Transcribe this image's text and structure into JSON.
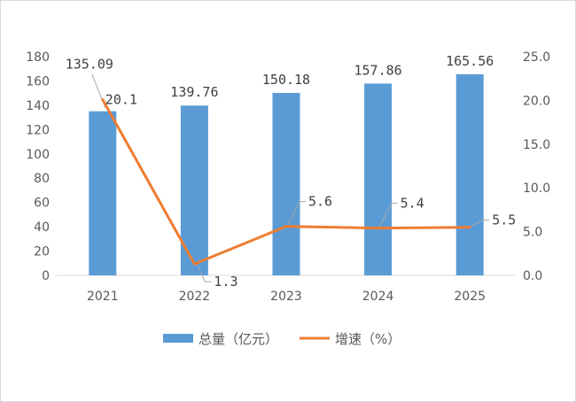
{
  "chart_data": {
    "type": "bar+line",
    "categories": [
      "2021",
      "2022",
      "2023",
      "2024",
      "2025"
    ],
    "series": [
      {
        "name": "总量（亿元）",
        "type": "bar",
        "axis": "left",
        "values": [
          135.09,
          139.76,
          150.18,
          157.86,
          165.56
        ],
        "labels": [
          "135.09",
          "139.76",
          "150.18",
          "157.86",
          "165.56"
        ],
        "color": "#5b9bd5"
      },
      {
        "name": "增速（%）",
        "type": "line",
        "axis": "right",
        "values": [
          20.1,
          1.3,
          5.6,
          5.4,
          5.5
        ],
        "labels": [
          "20.1",
          "1.3",
          "5.6",
          "5.4",
          "5.5"
        ],
        "color": "#ed7d31"
      }
    ],
    "y_left": {
      "min": 0,
      "max": 180,
      "ticks": [
        "0",
        "20",
        "40",
        "60",
        "80",
        "100",
        "120",
        "140",
        "160",
        "180"
      ]
    },
    "y_right": {
      "min": 0,
      "max": 25,
      "ticks": [
        "0.0",
        "5.0",
        "10.0",
        "15.0",
        "20.0",
        "25.0"
      ]
    },
    "legend_position": "bottom",
    "grid": false
  }
}
